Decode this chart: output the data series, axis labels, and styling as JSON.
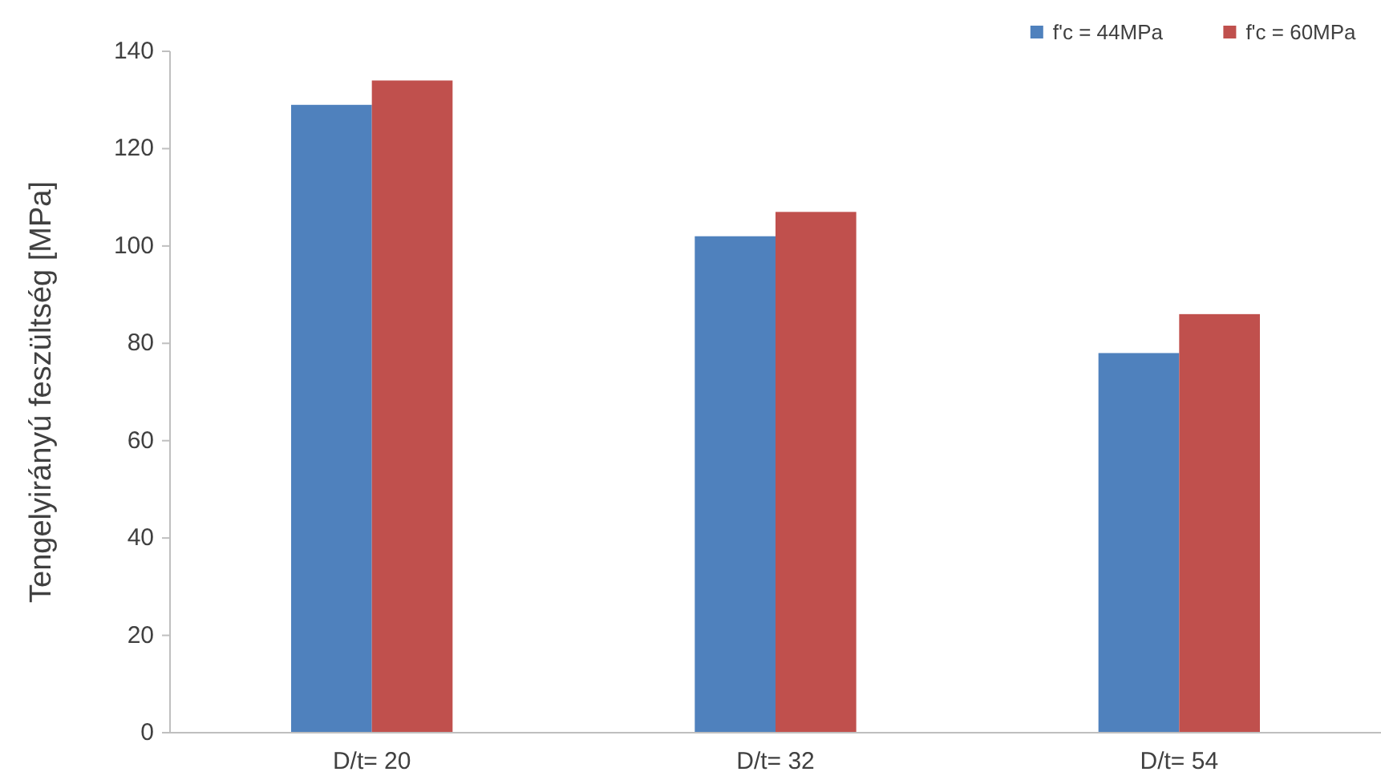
{
  "chart_data": {
    "type": "bar",
    "ylabel": "Tengelyirányú feszültség [MPa]",
    "categories": [
      "D/t= 20",
      "D/t= 32",
      "D/t= 54"
    ],
    "series": [
      {
        "name": "f'c = 44MPa",
        "color": "#4f81bd",
        "values": [
          129,
          102,
          78
        ]
      },
      {
        "name": "f'c = 60MPa",
        "color": "#c0504d",
        "values": [
          134,
          107,
          86
        ]
      }
    ],
    "ylim": [
      0,
      140
    ],
    "yticks": [
      0,
      20,
      40,
      60,
      80,
      100,
      120,
      140
    ],
    "legend": "top right"
  }
}
